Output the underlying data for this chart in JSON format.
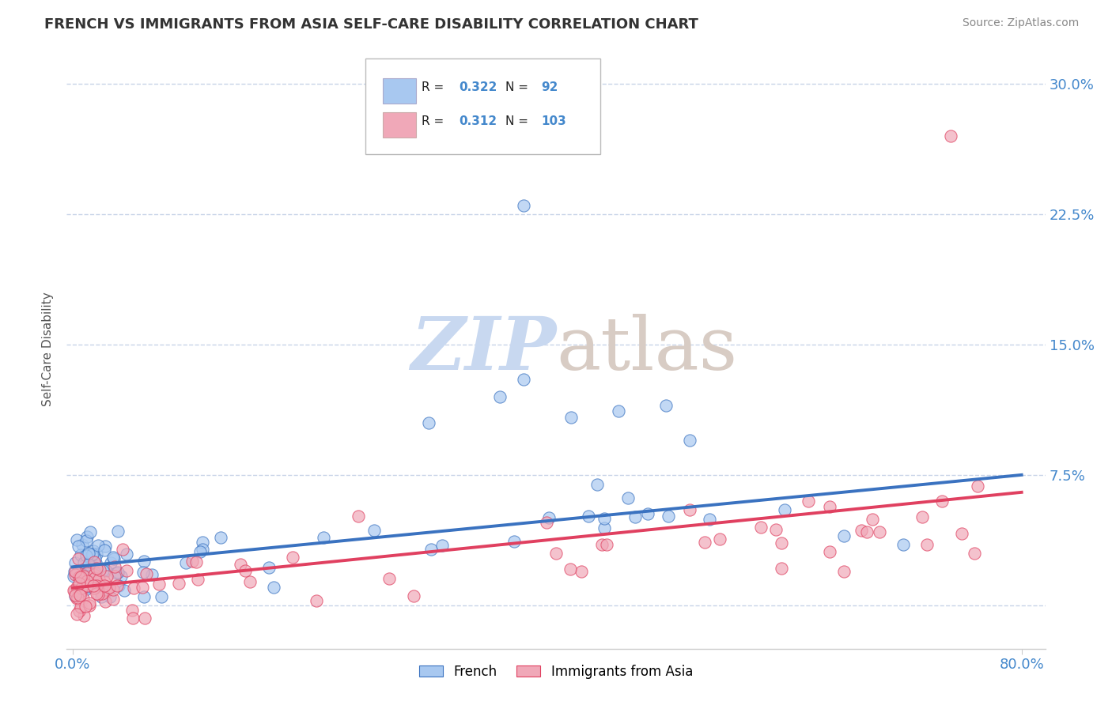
{
  "title": "FRENCH VS IMMIGRANTS FROM ASIA SELF-CARE DISABILITY CORRELATION CHART",
  "source": "Source: ZipAtlas.com",
  "ylabel": "Self-Care Disability",
  "ytick_vals": [
    0.0,
    0.075,
    0.15,
    0.225,
    0.3
  ],
  "ytick_labels": [
    "",
    "7.5%",
    "15.0%",
    "22.5%",
    "30.0%"
  ],
  "xlim": [
    -0.005,
    0.82
  ],
  "ylim": [
    -0.025,
    0.32
  ],
  "color_french": "#a8c8f0",
  "color_asia": "#f0a8b8",
  "color_french_line": "#3a72c0",
  "color_asia_line": "#e04060",
  "title_color": "#333333",
  "source_color": "#888888",
  "axis_label_color": "#4488cc",
  "watermark_zip": "#c8d8f0",
  "watermark_atlas": "#d8ccc4",
  "grid_color": "#c8d4e8",
  "bg_color": "#ffffff",
  "french_trend_start_y": 0.022,
  "french_trend_end_y": 0.075,
  "asia_trend_start_y": 0.01,
  "asia_trend_end_y": 0.065
}
